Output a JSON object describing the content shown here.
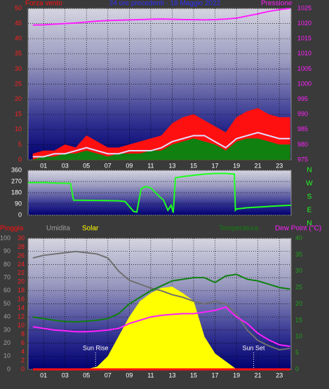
{
  "chart_data": [
    {
      "type": "line",
      "title": "24 ore precedenti - 18 Maggio 2022",
      "xlim": [
        -0.45,
        24.1
      ],
      "xticks": [
        {
          "value": 1,
          "label": "01"
        },
        {
          "value": 3,
          "label": "03"
        },
        {
          "value": 5,
          "label": "05"
        },
        {
          "value": 7,
          "label": "07"
        },
        {
          "value": 9,
          "label": "09"
        },
        {
          "value": 11,
          "label": "11"
        },
        {
          "value": 13,
          "label": "13"
        },
        {
          "value": 15,
          "label": "15"
        },
        {
          "value": 17,
          "label": "17"
        },
        {
          "value": 19,
          "label": "19"
        },
        {
          "value": 21,
          "label": "21"
        },
        {
          "value": 23,
          "label": "23"
        }
      ],
      "ylim": [
        0,
        50
      ],
      "yticks": [
        0,
        5,
        10,
        15,
        20,
        25,
        30,
        35,
        40,
        45,
        50
      ],
      "y2lim": [
        975,
        1025
      ],
      "y2ticks": [
        975,
        980,
        985,
        990,
        995,
        1000,
        1005,
        1010,
        1015,
        1020,
        1025
      ],
      "axis_colors": {
        "y": "#ff2020",
        "y2": "#ff20ff"
      },
      "grid": true,
      "x": [
        0,
        1,
        2,
        3,
        4,
        5,
        6,
        7,
        8,
        9,
        10,
        11,
        12,
        13,
        14,
        15,
        16,
        17,
        18,
        19,
        20,
        21,
        22,
        23,
        24
      ],
      "series": [
        {
          "name": "Forza vento",
          "color": "#ff1010",
          "axis": "y",
          "fill": true,
          "values": [
            2,
            3,
            3,
            5,
            4,
            8,
            6,
            4,
            4,
            5,
            6,
            7,
            8,
            12,
            14,
            15,
            13,
            11,
            9,
            14,
            16,
            17,
            15,
            14,
            14
          ]
        },
        {
          "color": "#108010",
          "axis": "y",
          "fill": true,
          "values": [
            0,
            1,
            1,
            2,
            2,
            3,
            2,
            1,
            2,
            2,
            2,
            3,
            3,
            5,
            6,
            7,
            6,
            5,
            3,
            6,
            7,
            7,
            6,
            5,
            5
          ]
        },
        {
          "color": "#e0e0ff",
          "axis": "y",
          "fill": false,
          "values": [
            1,
            1,
            2,
            2,
            3,
            4,
            3,
            2,
            2,
            3,
            3,
            3,
            4,
            6,
            7,
            8,
            8,
            6,
            4,
            7,
            8,
            9,
            8,
            7,
            7
          ]
        },
        {
          "name": "Pressione",
          "color": "#ff20ff",
          "axis": "y2",
          "fill": false,
          "values": [
            1019.5,
            1019.6,
            1019.8,
            1020,
            1020.2,
            1020.5,
            1020.8,
            1021,
            1021.1,
            1021.2,
            1021.3,
            1021.4,
            1021.5,
            1021.4,
            1021.3,
            1021.3,
            1021.2,
            1021.3,
            1021.5,
            1021.8,
            1022.5,
            1023.2,
            1024,
            1024.6,
            1025
          ]
        }
      ]
    },
    {
      "type": "line",
      "xlim": [
        -0.45,
        24.1
      ],
      "ylim": [
        0,
        360
      ],
      "yticks": [
        0,
        90,
        180,
        270,
        360
      ],
      "axis_colors": {
        "y": "#ffffff"
      },
      "grid": true,
      "compass": [
        "N",
        "W",
        "S",
        "E",
        "N"
      ],
      "compass_color": "#20ff20",
      "x": [
        -0.45,
        1,
        2,
        3.5,
        3.8,
        6,
        8,
        8.6,
        9.4,
        9.7,
        10.1,
        10.5,
        11,
        11.8,
        12.2,
        12.6,
        12.9,
        13.1,
        13.3,
        14,
        15,
        16,
        17,
        18,
        18.8,
        18.9,
        19,
        20,
        21,
        22,
        23,
        24.1
      ],
      "series": [
        {
          "color": "#20ff20",
          "axis": "y",
          "fill": false,
          "values": [
            260,
            262,
            258,
            255,
            120,
            118,
            115,
            110,
            30,
            25,
            210,
            230,
            220,
            150,
            120,
            40,
            80,
            20,
            300,
            310,
            320,
            330,
            335,
            335,
            330,
            40,
            50,
            60,
            65,
            70,
            75,
            80
          ]
        }
      ]
    },
    {
      "type": "line",
      "xlim": [
        -0.45,
        24.1
      ],
      "xticks": [
        {
          "value": 1,
          "label": "01"
        },
        {
          "value": 3,
          "label": "03"
        },
        {
          "value": 5,
          "label": "05"
        },
        {
          "value": 7,
          "label": "07"
        },
        {
          "value": 9,
          "label": "09"
        },
        {
          "value": 11,
          "label": "11"
        },
        {
          "value": 13,
          "label": "13"
        },
        {
          "value": 15,
          "label": "15"
        },
        {
          "value": 17,
          "label": "17"
        },
        {
          "value": 19,
          "label": "19"
        },
        {
          "value": 21,
          "label": "21"
        },
        {
          "value": 23,
          "label": "23"
        }
      ],
      "ylim": [
        0,
        100
      ],
      "yticks": [
        0,
        10,
        20,
        30,
        40,
        50,
        60,
        70,
        80,
        90,
        100
      ],
      "y3lim": [
        0,
        30
      ],
      "y3ticks": [
        0,
        2,
        4,
        6,
        8,
        10,
        12,
        14,
        16,
        18,
        20,
        22,
        24,
        26,
        28,
        30
      ],
      "y2lim": [
        0,
        40
      ],
      "y2ticks": [
        0,
        5,
        10,
        15,
        20,
        25,
        30,
        35,
        40
      ],
      "axis_colors": {
        "y": "#a0a0a0",
        "y3": "#ff2020",
        "y2": "#20a020"
      },
      "grid": true,
      "x": [
        0,
        1,
        2,
        3,
        4,
        5,
        6,
        7,
        8,
        9,
        10,
        11,
        12,
        13,
        14,
        15,
        16,
        17,
        18,
        19,
        20,
        21,
        22,
        23,
        24
      ],
      "series": [
        {
          "name": "Solar",
          "color": "#ffff00",
          "axis": "y",
          "fill": true,
          "values": [
            0,
            0,
            0,
            0,
            0,
            0,
            2,
            10,
            25,
            40,
            52,
            58,
            62,
            63,
            58,
            52,
            25,
            12,
            6,
            0,
            0,
            0,
            0,
            0,
            0
          ]
        },
        {
          "name": "Umidita",
          "color": "#707070",
          "axis": "y",
          "fill": false,
          "values": [
            85,
            87,
            88,
            89,
            90,
            89,
            88,
            85,
            75,
            68,
            65,
            62,
            60,
            57,
            55,
            52,
            50,
            52,
            50,
            42,
            30,
            22,
            18,
            15,
            16
          ]
        },
        {
          "name": "Temperatura",
          "color": "#108010",
          "axis": "y2",
          "fill": false,
          "values": [
            16,
            15.5,
            15,
            14.6,
            14.5,
            14.7,
            15,
            15.5,
            17,
            20,
            22,
            24,
            25.5,
            27,
            27.5,
            28,
            28,
            26.5,
            28.5,
            29,
            27.5,
            27,
            26,
            25,
            24.5
          ]
        },
        {
          "name": "Dew Point (°C)",
          "color": "#ff20ff",
          "axis": "y2",
          "fill": false,
          "values": [
            13,
            12.5,
            12,
            11.8,
            11.5,
            11.5,
            11.7,
            12,
            12.5,
            14,
            15,
            16,
            16.5,
            16.8,
            17,
            17,
            17.5,
            18,
            19,
            16,
            14,
            11,
            9,
            7.5,
            7
          ]
        },
        {
          "name": "Pioggia",
          "color": "#ff1010",
          "axis": "y3",
          "fill": false,
          "values": [
            0,
            0,
            0,
            0,
            0,
            0,
            0,
            0,
            0,
            0,
            0,
            0,
            0,
            0,
            0,
            0,
            0,
            0,
            0,
            0,
            0,
            0,
            0,
            0,
            0
          ]
        }
      ],
      "annotations": [
        {
          "text": "Sun Rise",
          "x": 5.85
        },
        {
          "text": "Sun Set",
          "x": 20.6
        }
      ]
    }
  ]
}
